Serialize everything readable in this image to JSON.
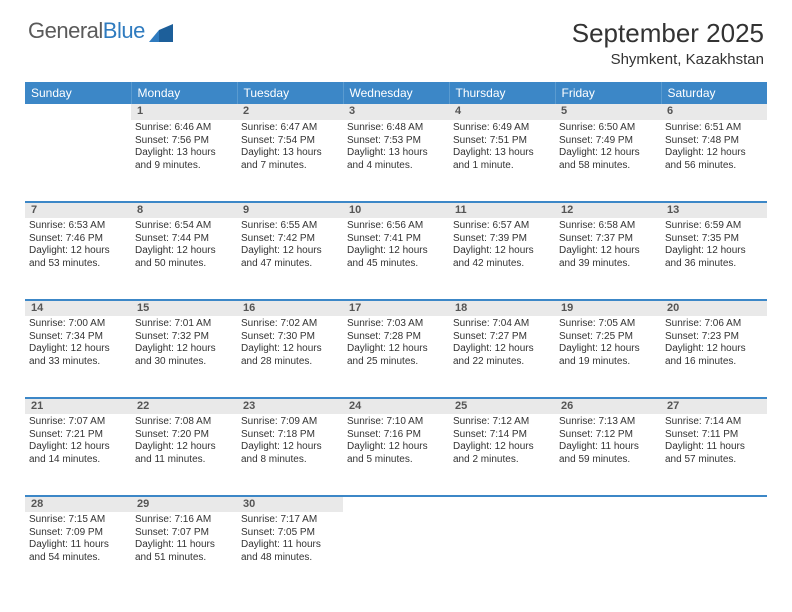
{
  "brand": {
    "part1": "General",
    "part2": "Blue"
  },
  "title": {
    "month": "September 2025",
    "location": "Shymkent, Kazakhstan"
  },
  "colors": {
    "header_bg": "#3c87c7",
    "header_text": "#ffffff",
    "daynum_bg": "#e9e9e9",
    "row_border": "#3c87c7",
    "body_text": "#333333",
    "logo_gray": "#5a5a5a",
    "logo_blue": "#2f7bbf"
  },
  "weekdays": [
    "Sunday",
    "Monday",
    "Tuesday",
    "Wednesday",
    "Thursday",
    "Friday",
    "Saturday"
  ],
  "weeks": [
    {
      "nums": [
        "",
        "1",
        "2",
        "3",
        "4",
        "5",
        "6"
      ],
      "cells": [
        null,
        {
          "sunrise": "Sunrise: 6:46 AM",
          "sunset": "Sunset: 7:56 PM",
          "daylight": "Daylight: 13 hours and 9 minutes."
        },
        {
          "sunrise": "Sunrise: 6:47 AM",
          "sunset": "Sunset: 7:54 PM",
          "daylight": "Daylight: 13 hours and 7 minutes."
        },
        {
          "sunrise": "Sunrise: 6:48 AM",
          "sunset": "Sunset: 7:53 PM",
          "daylight": "Daylight: 13 hours and 4 minutes."
        },
        {
          "sunrise": "Sunrise: 6:49 AM",
          "sunset": "Sunset: 7:51 PM",
          "daylight": "Daylight: 13 hours and 1 minute."
        },
        {
          "sunrise": "Sunrise: 6:50 AM",
          "sunset": "Sunset: 7:49 PM",
          "daylight": "Daylight: 12 hours and 58 minutes."
        },
        {
          "sunrise": "Sunrise: 6:51 AM",
          "sunset": "Sunset: 7:48 PM",
          "daylight": "Daylight: 12 hours and 56 minutes."
        }
      ]
    },
    {
      "nums": [
        "7",
        "8",
        "9",
        "10",
        "11",
        "12",
        "13"
      ],
      "cells": [
        {
          "sunrise": "Sunrise: 6:53 AM",
          "sunset": "Sunset: 7:46 PM",
          "daylight": "Daylight: 12 hours and 53 minutes."
        },
        {
          "sunrise": "Sunrise: 6:54 AM",
          "sunset": "Sunset: 7:44 PM",
          "daylight": "Daylight: 12 hours and 50 minutes."
        },
        {
          "sunrise": "Sunrise: 6:55 AM",
          "sunset": "Sunset: 7:42 PM",
          "daylight": "Daylight: 12 hours and 47 minutes."
        },
        {
          "sunrise": "Sunrise: 6:56 AM",
          "sunset": "Sunset: 7:41 PM",
          "daylight": "Daylight: 12 hours and 45 minutes."
        },
        {
          "sunrise": "Sunrise: 6:57 AM",
          "sunset": "Sunset: 7:39 PM",
          "daylight": "Daylight: 12 hours and 42 minutes."
        },
        {
          "sunrise": "Sunrise: 6:58 AM",
          "sunset": "Sunset: 7:37 PM",
          "daylight": "Daylight: 12 hours and 39 minutes."
        },
        {
          "sunrise": "Sunrise: 6:59 AM",
          "sunset": "Sunset: 7:35 PM",
          "daylight": "Daylight: 12 hours and 36 minutes."
        }
      ]
    },
    {
      "nums": [
        "14",
        "15",
        "16",
        "17",
        "18",
        "19",
        "20"
      ],
      "cells": [
        {
          "sunrise": "Sunrise: 7:00 AM",
          "sunset": "Sunset: 7:34 PM",
          "daylight": "Daylight: 12 hours and 33 minutes."
        },
        {
          "sunrise": "Sunrise: 7:01 AM",
          "sunset": "Sunset: 7:32 PM",
          "daylight": "Daylight: 12 hours and 30 minutes."
        },
        {
          "sunrise": "Sunrise: 7:02 AM",
          "sunset": "Sunset: 7:30 PM",
          "daylight": "Daylight: 12 hours and 28 minutes."
        },
        {
          "sunrise": "Sunrise: 7:03 AM",
          "sunset": "Sunset: 7:28 PM",
          "daylight": "Daylight: 12 hours and 25 minutes."
        },
        {
          "sunrise": "Sunrise: 7:04 AM",
          "sunset": "Sunset: 7:27 PM",
          "daylight": "Daylight: 12 hours and 22 minutes."
        },
        {
          "sunrise": "Sunrise: 7:05 AM",
          "sunset": "Sunset: 7:25 PM",
          "daylight": "Daylight: 12 hours and 19 minutes."
        },
        {
          "sunrise": "Sunrise: 7:06 AM",
          "sunset": "Sunset: 7:23 PM",
          "daylight": "Daylight: 12 hours and 16 minutes."
        }
      ]
    },
    {
      "nums": [
        "21",
        "22",
        "23",
        "24",
        "25",
        "26",
        "27"
      ],
      "cells": [
        {
          "sunrise": "Sunrise: 7:07 AM",
          "sunset": "Sunset: 7:21 PM",
          "daylight": "Daylight: 12 hours and 14 minutes."
        },
        {
          "sunrise": "Sunrise: 7:08 AM",
          "sunset": "Sunset: 7:20 PM",
          "daylight": "Daylight: 12 hours and 11 minutes."
        },
        {
          "sunrise": "Sunrise: 7:09 AM",
          "sunset": "Sunset: 7:18 PM",
          "daylight": "Daylight: 12 hours and 8 minutes."
        },
        {
          "sunrise": "Sunrise: 7:10 AM",
          "sunset": "Sunset: 7:16 PM",
          "daylight": "Daylight: 12 hours and 5 minutes."
        },
        {
          "sunrise": "Sunrise: 7:12 AM",
          "sunset": "Sunset: 7:14 PM",
          "daylight": "Daylight: 12 hours and 2 minutes."
        },
        {
          "sunrise": "Sunrise: 7:13 AM",
          "sunset": "Sunset: 7:12 PM",
          "daylight": "Daylight: 11 hours and 59 minutes."
        },
        {
          "sunrise": "Sunrise: 7:14 AM",
          "sunset": "Sunset: 7:11 PM",
          "daylight": "Daylight: 11 hours and 57 minutes."
        }
      ]
    },
    {
      "nums": [
        "28",
        "29",
        "30",
        "",
        "",
        "",
        ""
      ],
      "cells": [
        {
          "sunrise": "Sunrise: 7:15 AM",
          "sunset": "Sunset: 7:09 PM",
          "daylight": "Daylight: 11 hours and 54 minutes."
        },
        {
          "sunrise": "Sunrise: 7:16 AM",
          "sunset": "Sunset: 7:07 PM",
          "daylight": "Daylight: 11 hours and 51 minutes."
        },
        {
          "sunrise": "Sunrise: 7:17 AM",
          "sunset": "Sunset: 7:05 PM",
          "daylight": "Daylight: 11 hours and 48 minutes."
        },
        null,
        null,
        null,
        null
      ]
    }
  ]
}
